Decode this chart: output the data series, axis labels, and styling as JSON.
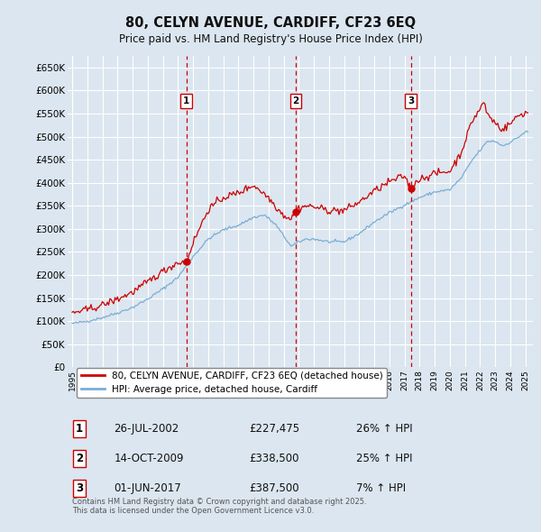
{
  "title": "80, CELYN AVENUE, CARDIFF, CF23 6EQ",
  "subtitle": "Price paid vs. HM Land Registry's House Price Index (HPI)",
  "background_color": "#dce6f0",
  "plot_bg_color": "#dce6f0",
  "ylim": [
    0,
    675000
  ],
  "yticks": [
    0,
    50000,
    100000,
    150000,
    200000,
    250000,
    300000,
    350000,
    400000,
    450000,
    500000,
    550000,
    600000,
    650000
  ],
  "xlim_start": 1994.7,
  "xlim_end": 2025.5,
  "grid_color": "#ffffff",
  "legend_entries": [
    "80, CELYN AVENUE, CARDIFF, CF23 6EQ (detached house)",
    "HPI: Average price, detached house, Cardiff"
  ],
  "line_color_red": "#cc0000",
  "line_color_blue": "#7aadd4",
  "purchases": [
    {
      "num": 1,
      "date": "26-JUL-2002",
      "price": 227475,
      "pct": "26%",
      "dir": "↑",
      "x": 2002.55
    },
    {
      "num": 2,
      "date": "14-OCT-2009",
      "price": 338500,
      "pct": "25%",
      "dir": "↑",
      "x": 2009.79
    },
    {
      "num": 3,
      "date": "01-JUN-2017",
      "price": 387500,
      "pct": "7%",
      "dir": "↑",
      "x": 2017.42
    }
  ],
  "footer_text": "Contains HM Land Registry data © Crown copyright and database right 2025.\nThis data is licensed under the Open Government Licence v3.0."
}
